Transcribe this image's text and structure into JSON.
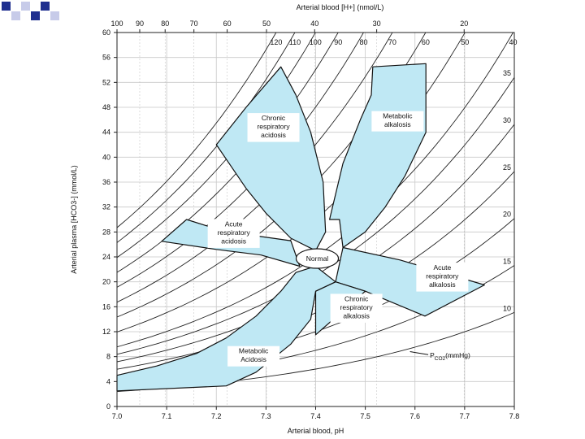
{
  "colors": {
    "region_fill": "#bfe8f4",
    "region_stroke": "#111111",
    "grid": "#c8c8c8",
    "isobar": "#222222",
    "deco_blue": "#1f2f8f",
    "deco_light": "#c7cbe9"
  },
  "chart_data": {
    "type": "line",
    "title": "",
    "xlabel": "Arterial blood, pH",
    "ylabel": "Arterial plasma [HCO3-] (mmol/L)",
    "top_axis_label": "Arterial blood [H+] (nmol/L)",
    "xlim": [
      7.0,
      7.8
    ],
    "ylim": [
      0,
      60
    ],
    "x_ticks": [
      "7.0",
      "7.1",
      "7.2",
      "7.3",
      "7.4",
      "7.5",
      "7.6",
      "7.7",
      "7.8"
    ],
    "y_ticks": [
      "0",
      "4",
      "8",
      "12",
      "16",
      "20",
      "24",
      "28",
      "32",
      "36",
      "40",
      "44",
      "48",
      "52",
      "56",
      "60"
    ],
    "top_ticks": [
      {
        "label": "100",
        "h": 100
      },
      {
        "label": "90",
        "h": 90
      },
      {
        "label": "80",
        "h": 80
      },
      {
        "label": "70",
        "h": 70
      },
      {
        "label": "60",
        "h": 60
      },
      {
        "label": "50",
        "h": 50
      },
      {
        "label": "40",
        "h": 40
      },
      {
        "label": "30",
        "h": 30
      },
      {
        "label": "20",
        "h": 20
      }
    ],
    "grid": true,
    "isobar_label": "PCO2 (mmHg)",
    "isobars": [
      {
        "pco2": 120,
        "label": "120"
      },
      {
        "pco2": 110,
        "label": "110"
      },
      {
        "pco2": 100,
        "label": "100"
      },
      {
        "pco2": 90,
        "label": "90"
      },
      {
        "pco2": 80,
        "label": "80"
      },
      {
        "pco2": 70,
        "label": "70"
      },
      {
        "pco2": 60,
        "label": "60"
      },
      {
        "pco2": 50,
        "label": "50"
      },
      {
        "pco2": 40,
        "label": "40"
      },
      {
        "pco2": 35,
        "label": "35"
      },
      {
        "pco2": 30,
        "label": "30"
      },
      {
        "pco2": 25,
        "label": "25"
      },
      {
        "pco2": 20,
        "label": "20"
      },
      {
        "pco2": 15,
        "label": "15"
      },
      {
        "pco2": 10,
        "label": "10"
      }
    ],
    "regions": [
      {
        "name": "Chronic respiratory acidosis",
        "label_lines": [
          "Chronic",
          "respiratory",
          "acidosis"
        ],
        "label_at": [
          7.315,
          44.5
        ],
        "points": [
          [
            7.2,
            42
          ],
          [
            7.26,
            48
          ],
          [
            7.33,
            54.5
          ],
          [
            7.36,
            50
          ],
          [
            7.39,
            44
          ],
          [
            7.415,
            36
          ],
          [
            7.42,
            28
          ],
          [
            7.4,
            25
          ],
          [
            7.35,
            27
          ],
          [
            7.3,
            31
          ],
          [
            7.26,
            35
          ],
          [
            7.23,
            38.5
          ]
        ]
      },
      {
        "name": "Metabolic alkalosis",
        "label_lines": [
          "Metabolic",
          "alkalosis"
        ],
        "label_at": [
          7.565,
          45.5
        ],
        "points": [
          [
            7.515,
            54.5
          ],
          [
            7.622,
            55
          ],
          [
            7.622,
            44
          ],
          [
            7.58,
            37
          ],
          [
            7.54,
            32
          ],
          [
            7.5,
            28
          ],
          [
            7.455,
            25.5
          ],
          [
            7.448,
            30
          ],
          [
            7.428,
            30
          ],
          [
            7.455,
            39
          ],
          [
            7.49,
            46
          ],
          [
            7.512,
            50
          ]
        ]
      },
      {
        "name": "Acute respiratory acidosis",
        "label_lines": [
          "Acute",
          "respiratory",
          "acidosis"
        ],
        "label_at": [
          7.235,
          27.5
        ],
        "points": [
          [
            7.14,
            30
          ],
          [
            7.2,
            28.5
          ],
          [
            7.26,
            27.6
          ],
          [
            7.35,
            26.6
          ],
          [
            7.368,
            22.5
          ],
          [
            7.29,
            24.3
          ],
          [
            7.2,
            25.2
          ],
          [
            7.09,
            26.5
          ]
        ]
      },
      {
        "name": "Acute respiratory alkalosis",
        "label_lines": [
          "Acute",
          "respiratory",
          "alkalosis"
        ],
        "label_at": [
          7.655,
          20.5
        ],
        "points": [
          [
            7.455,
            25.5
          ],
          [
            7.57,
            23.5
          ],
          [
            7.74,
            19.5
          ],
          [
            7.62,
            14.5
          ],
          [
            7.5,
            18.5
          ],
          [
            7.44,
            20
          ]
        ]
      },
      {
        "name": "Chronic respiratory alkalosis",
        "label_lines": [
          "Chronic",
          "respiratory",
          "alkalosis"
        ],
        "label_at": [
          7.482,
          15.5
        ],
        "points": [
          [
            7.44,
            20
          ],
          [
            7.5,
            18.5
          ],
          [
            7.45,
            15
          ],
          [
            7.4,
            11.5
          ],
          [
            7.4,
            18.5
          ]
        ]
      },
      {
        "name": "Metabolic Acidosis",
        "label_lines": [
          "Metabolic",
          "Acidosis"
        ],
        "label_at": [
          7.275,
          7.8
        ],
        "points": [
          [
            7.0,
            2.5
          ],
          [
            7.22,
            3.3
          ],
          [
            7.28,
            5.5
          ],
          [
            7.35,
            10
          ],
          [
            7.39,
            14
          ],
          [
            7.4,
            18.5
          ],
          [
            7.44,
            20
          ],
          [
            7.4,
            22.5
          ],
          [
            7.36,
            21.5
          ],
          [
            7.33,
            18.5
          ],
          [
            7.28,
            14.5
          ],
          [
            7.22,
            11
          ],
          [
            7.16,
            8.5
          ],
          [
            7.08,
            6.5
          ],
          [
            7.0,
            5
          ]
        ]
      }
    ],
    "normal": {
      "label": "Normal",
      "x": 7.4,
      "y": 24
    },
    "pco2_pointer": {
      "label_main": "P",
      "label_sub": "CO2",
      "label_tail": "(mmHg)",
      "x": 7.63,
      "y": 7.8,
      "target_x": 7.59,
      "target_y": 8.8
    }
  }
}
